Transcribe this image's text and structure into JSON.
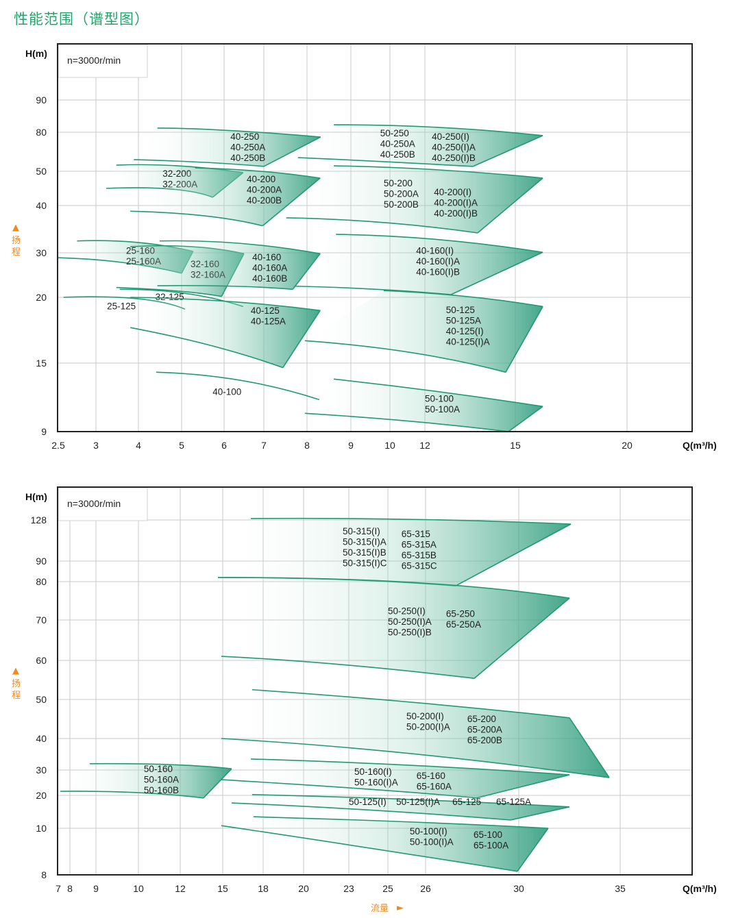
{
  "title": "性能范围（谱型图）",
  "colors": {
    "title": "#1fa56a",
    "curve": "#1f9a72",
    "fill": "#2f9c7c",
    "axis_hint": "#f08a1c",
    "grid": "#c8c8c8"
  },
  "chart_data": [
    {
      "type": "area",
      "speed_label": "n=3000r/min",
      "ylabel": "H(m)",
      "xlabel": "Q(m³/h)",
      "y_hint": "扬程",
      "x_ticks": [
        2.5,
        3,
        4,
        5,
        6,
        7,
        8,
        9,
        10,
        12,
        15,
        20
      ],
      "y_ticks": [
        90,
        80,
        50,
        40,
        30,
        20,
        15,
        9
      ],
      "grid": true,
      "regions": [
        {
          "top": [
            [
              4.44,
              81.3
            ],
            [
              6.05,
              80.6
            ],
            [
              8.31,
              76.3
            ]
          ],
          "bottom": [
            [
              3.89,
              58.9
            ],
            [
              5.56,
              56.8
            ],
            [
              7.0,
              53.7
            ]
          ],
          "labels": [
            {
              "at": [
                6.16,
                74.2
              ],
              "lines": [
                "40-250",
                "40-250A",
                "40-250B"
              ]
            }
          ]
        },
        {
          "top": [
            [
              3.48,
              54.7
            ],
            [
              4.92,
              54.2
            ],
            [
              6.48,
              49.6
            ]
          ],
          "bottom": [
            [
              3.24,
              45.0
            ],
            [
              4.76,
              44.8
            ],
            [
              5.73,
              42.4
            ]
          ],
          "labels": [
            {
              "at": [
                4.56,
                48.4
              ],
              "lines": [
                "32-200",
                "32-200A"
              ]
            }
          ]
        },
        {
          "top": [
            [
              5.32,
              52.6
            ],
            [
              6.91,
              50.0
            ],
            [
              8.3,
              48.0
            ]
          ],
          "bottom": [
            [
              3.81,
              38.8
            ],
            [
              5.56,
              37.8
            ],
            [
              6.97,
              35.7
            ]
          ],
          "labels": [
            {
              "at": [
                6.57,
                46.8
              ],
              "lines": [
                "40-200",
                "40-200A",
                "40-200B"
              ]
            }
          ]
        },
        {
          "top": [
            [
              8.61,
              82.3
            ],
            [
              12.45,
              81.5
            ],
            [
              16.23,
              77.4
            ]
          ],
          "bottom": [
            [
              7.79,
              60.5
            ],
            [
              9.84,
              57.4
            ],
            [
              13.59,
              53.7
            ]
          ],
          "labels": [
            {
              "at": [
                9.75,
                76.8
              ],
              "lines": [
                "50-250",
                "40-250A",
                "40-250B"
              ]
            },
            {
              "at": [
                12.23,
                74.2
              ],
              "lines": [
                "40-250(I)",
                "40-250(I)A",
                "40-250(I)B"
              ]
            }
          ]
        },
        {
          "top": [
            [
              8.61,
              54.2
            ],
            [
              12.45,
              51.1
            ],
            [
              16.23,
              48.0
            ]
          ],
          "bottom": [
            [
              7.52,
              37.4
            ],
            [
              9.84,
              36.4
            ],
            [
              13.75,
              34.2
            ]
          ],
          "labels": [
            {
              "at": [
                9.84,
                45.6
              ],
              "lines": [
                "50-200",
                "50-200A",
                "50-200B"
              ]
            },
            {
              "at": [
                12.3,
                43.0
              ],
              "lines": [
                "40-200(I)",
                "40-200(I)A",
                "40-200(I)B"
              ]
            }
          ]
        },
        {
          "top": [
            [
              2.75,
              32.5
            ],
            [
              3.97,
              32.2
            ],
            [
              5.27,
              30.3
            ]
          ],
          "bottom": [
            [
              2.5,
              28.9
            ],
            [
              3.65,
              27.8
            ],
            [
              5.0,
              25.4
            ]
          ],
          "labels": [
            {
              "at": [
                3.71,
                29.8
              ],
              "lines": [
                "25-160",
                "25-160A"
              ]
            }
          ]
        },
        {
          "top": [
            [
              3.81,
              31.3
            ],
            [
              5.24,
              31.3
            ],
            [
              6.5,
              29.8
            ]
          ],
          "bottom": [
            [
              3.48,
              22.2
            ],
            [
              4.92,
              21.4
            ],
            [
              5.94,
              20.2
            ]
          ],
          "labels": [
            {
              "at": [
                5.21,
                26.8
              ],
              "lines": [
                "32-160",
                "32-160A"
              ]
            }
          ]
        },
        {
          "top": [
            [
              4.49,
              32.5
            ],
            [
              6.4,
              32.0
            ],
            [
              8.3,
              29.8
            ]
          ],
          "bottom": [
            [
              4.44,
              22.6
            ],
            [
              6.22,
              22.5
            ],
            [
              7.67,
              21.8
            ]
          ],
          "labels": [
            {
              "at": [
                6.71,
                28.3
              ],
              "lines": [
                "40-160",
                "40-160A",
                "40-160B"
              ]
            }
          ]
        },
        {
          "top": [
            [
              8.66,
              33.9
            ],
            [
              12.45,
              32.8
            ],
            [
              16.23,
              30.1
            ]
          ],
          "bottom": [
            [
              7.71,
              22.5
            ],
            [
              9.67,
              21.8
            ],
            [
              12.86,
              20.6
            ]
          ],
          "labels": [
            {
              "at": [
                11.5,
                29.8
              ],
              "lines": [
                "40-160(I)",
                "40-160(I)A",
                "40-160(I)B"
              ]
            }
          ]
        },
        {
          "top": [
            [
              3.56,
              21.8
            ],
            [
              5.08,
              20.9
            ],
            [
              6.48,
              19.3
            ]
          ],
          "labels": [
            {
              "at": [
                4.39,
                19.8
              ],
              "lines": [
                "32-125"
              ]
            }
          ]
        },
        {
          "top": [
            [
              2.57,
              20.0
            ],
            [
              3.97,
              19.9
            ],
            [
              5.08,
              19.1
            ]
          ],
          "labels": [
            {
              "at": [
                3.26,
                19.1
              ],
              "lines": [
                "25-125"
              ]
            }
          ]
        },
        {
          "top": [
            [
              3.81,
              20.0
            ],
            [
              6.05,
              19.7
            ],
            [
              8.3,
              19.0
            ]
          ],
          "bottom": [
            [
              3.81,
              17.7
            ],
            [
              5.73,
              16.3
            ],
            [
              7.44,
              14.6
            ]
          ],
          "labels": [
            {
              "at": [
                6.67,
                18.75
              ],
              "lines": [
                "40-125",
                "40-125A"
              ]
            }
          ]
        },
        {
          "top": [
            [
              9.84,
              21.5
            ],
            [
              13.36,
              20.2
            ],
            [
              16.23,
              19.3
            ]
          ],
          "bottom": [
            [
              7.95,
              16.7
            ],
            [
              11.22,
              15.8
            ],
            [
              14.68,
              14.2
            ]
          ],
          "labels": [
            {
              "at": [
                12.7,
                18.8
              ],
              "lines": [
                "50-125",
                "50-125A",
                "40-125(I)",
                "40-125(I)A"
              ]
            }
          ]
        },
        {
          "top": [
            [
              4.41,
              14.2
            ],
            [
              6.4,
              13.5
            ],
            [
              8.28,
              11.8
            ]
          ],
          "labels": [
            {
              "at": [
                5.73,
                12.2
              ],
              "lines": [
                "40-100"
              ]
            }
          ]
        },
        {
          "top": [
            [
              8.61,
              13.6
            ],
            [
              12.45,
              12.5
            ],
            [
              16.23,
              11.2
            ]
          ],
          "bottom": [
            [
              7.95,
              10.6
            ],
            [
              11.22,
              9.9
            ],
            [
              14.77,
              9.0
            ]
          ],
          "labels": [
            {
              "at": [
                12.0,
                11.6
              ],
              "lines": [
                "50-100",
                "50-100A"
              ]
            }
          ]
        }
      ]
    },
    {
      "type": "area",
      "speed_label": "n=3000r/min",
      "ylabel": "H(m)",
      "xlabel": "Q(m³/h)",
      "y_hint": "扬程",
      "x_hint": "流量",
      "x_ticks": [
        7,
        8,
        9,
        10,
        12,
        15,
        18,
        20,
        23,
        25,
        26,
        30,
        35
      ],
      "y_ticks": [
        128,
        90,
        80,
        70,
        60,
        50,
        40,
        30,
        20,
        10,
        8
      ],
      "grid": true,
      "regions": [
        {
          "top": [
            [
              17.08,
              129.3
            ],
            [
              25.62,
              128.6
            ],
            [
              32.57,
              124.2
            ]
          ],
          "bottom": [
            [
              14.66,
              82.0
            ],
            [
              22.59,
              81.0
            ],
            [
              27.29,
              78.9
            ]
          ],
          "labels": [
            {
              "at": [
                22.59,
                114.7
              ],
              "lines": [
                "50-315(I)",
                "50-315(I)A",
                "50-315(I)B",
                "50-315(I)C"
              ]
            },
            {
              "at": [
                25.36,
                112.2
              ],
              "lines": [
                "65-315",
                "65-315A",
                "65-315B",
                "65-315C"
              ]
            }
          ]
        },
        {
          "top": [
            [
              14.66,
              82.0
            ],
            [
              25.62,
              79.8
            ],
            [
              32.5,
              75.7
            ]
          ],
          "bottom": [
            [
              14.9,
              61.0
            ],
            [
              22.59,
              58.9
            ],
            [
              28.09,
              55.4
            ]
          ],
          "labels": [
            {
              "at": [
                25.0,
                71.5
              ],
              "lines": [
                "50-250(I)",
                "50-250(I)A",
                "50-250(I)B"
              ]
            },
            {
              "at": [
                26.88,
                70.8
              ],
              "lines": [
                "65-250",
                "65-250A"
              ]
            }
          ]
        },
        {
          "top": [
            [
              17.18,
              52.5
            ],
            [
              25.62,
              49.3
            ],
            [
              32.5,
              45.3
            ]
          ],
          "bottom": [
            [
              14.9,
              40.0
            ],
            [
              25.62,
              35.2
            ],
            [
              34.46,
              27.0
            ]
          ],
          "labels": [
            {
              "at": [
                25.49,
                44.9
              ],
              "lines": [
                "50-200(I)",
                "50-200(I)A"
              ]
            },
            {
              "at": [
                27.79,
                44.2
              ],
              "lines": [
                "65-200",
                "65-200A",
                "65-200B"
              ]
            }
          ]
        },
        {
          "top": [
            [
              8.76,
              32.0
            ],
            [
              11.57,
              31.7
            ],
            [
              15.66,
              30.4
            ]
          ],
          "bottom": [
            [
              7.18,
              21.6
            ],
            [
              9.97,
              21.1
            ],
            [
              13.64,
              19.2
            ]
          ],
          "labels": [
            {
              "at": [
                10.26,
                29.2
              ],
              "lines": [
                "50-160",
                "50-160A",
                "50-160B"
              ]
            }
          ]
        },
        {
          "top": [
            [
              17.09,
              33.5
            ],
            [
              25.62,
              31.5
            ],
            [
              32.5,
              28.1
            ]
          ],
          "bottom": [
            [
              14.9,
              26.2
            ],
            [
              24.44,
              22.2
            ],
            [
              28.18,
              19.2
            ]
          ],
          "labels": [
            {
              "at": [
                23.28,
                28.1
              ],
              "lines": [
                "50-160(I)",
                "50-160(I)A"
              ]
            },
            {
              "at": [
                25.76,
                26.5
              ],
              "lines": [
                "65-160",
                "65-160A"
              ]
            }
          ]
        },
        {
          "top": [
            [
              17.18,
              20.3
            ],
            [
              25.62,
              18.75
            ],
            [
              32.5,
              16.5
            ]
          ],
          "bottom": [
            [
              15.66,
              17.7
            ],
            [
              24.44,
              15.4
            ],
            [
              29.65,
              12.5
            ]
          ],
          "labels": [
            {
              "at": [
                23.0,
                17.1
              ],
              "lines": [
                "50-125(I)"
              ]
            },
            {
              "at": [
                25.22,
                17.1
              ],
              "lines": [
                "50-125(I)A"
              ]
            },
            {
              "at": [
                27.15,
                17.1
              ],
              "lines": [
                "65-125"
              ]
            },
            {
              "at": [
                29.03,
                17.1
              ],
              "lines": [
                "65-125A"
              ]
            }
          ]
        },
        {
          "top": [
            [
              17.28,
              13.5
            ],
            [
              25.62,
              11.9
            ],
            [
              31.45,
              10.0
            ]
          ],
          "bottom": [
            [
              14.9,
              10.8
            ],
            [
              24.44,
              9.1
            ],
            [
              29.94,
              8.15
            ]
          ],
          "labels": [
            {
              "at": [
                25.58,
                9.74
              ],
              "lines": [
                "50-100(I)",
                "50-100(I)A"
              ]
            },
            {
              "at": [
                28.06,
                9.59
              ],
              "lines": [
                "65-100",
                "65-100A"
              ]
            }
          ]
        }
      ]
    }
  ]
}
